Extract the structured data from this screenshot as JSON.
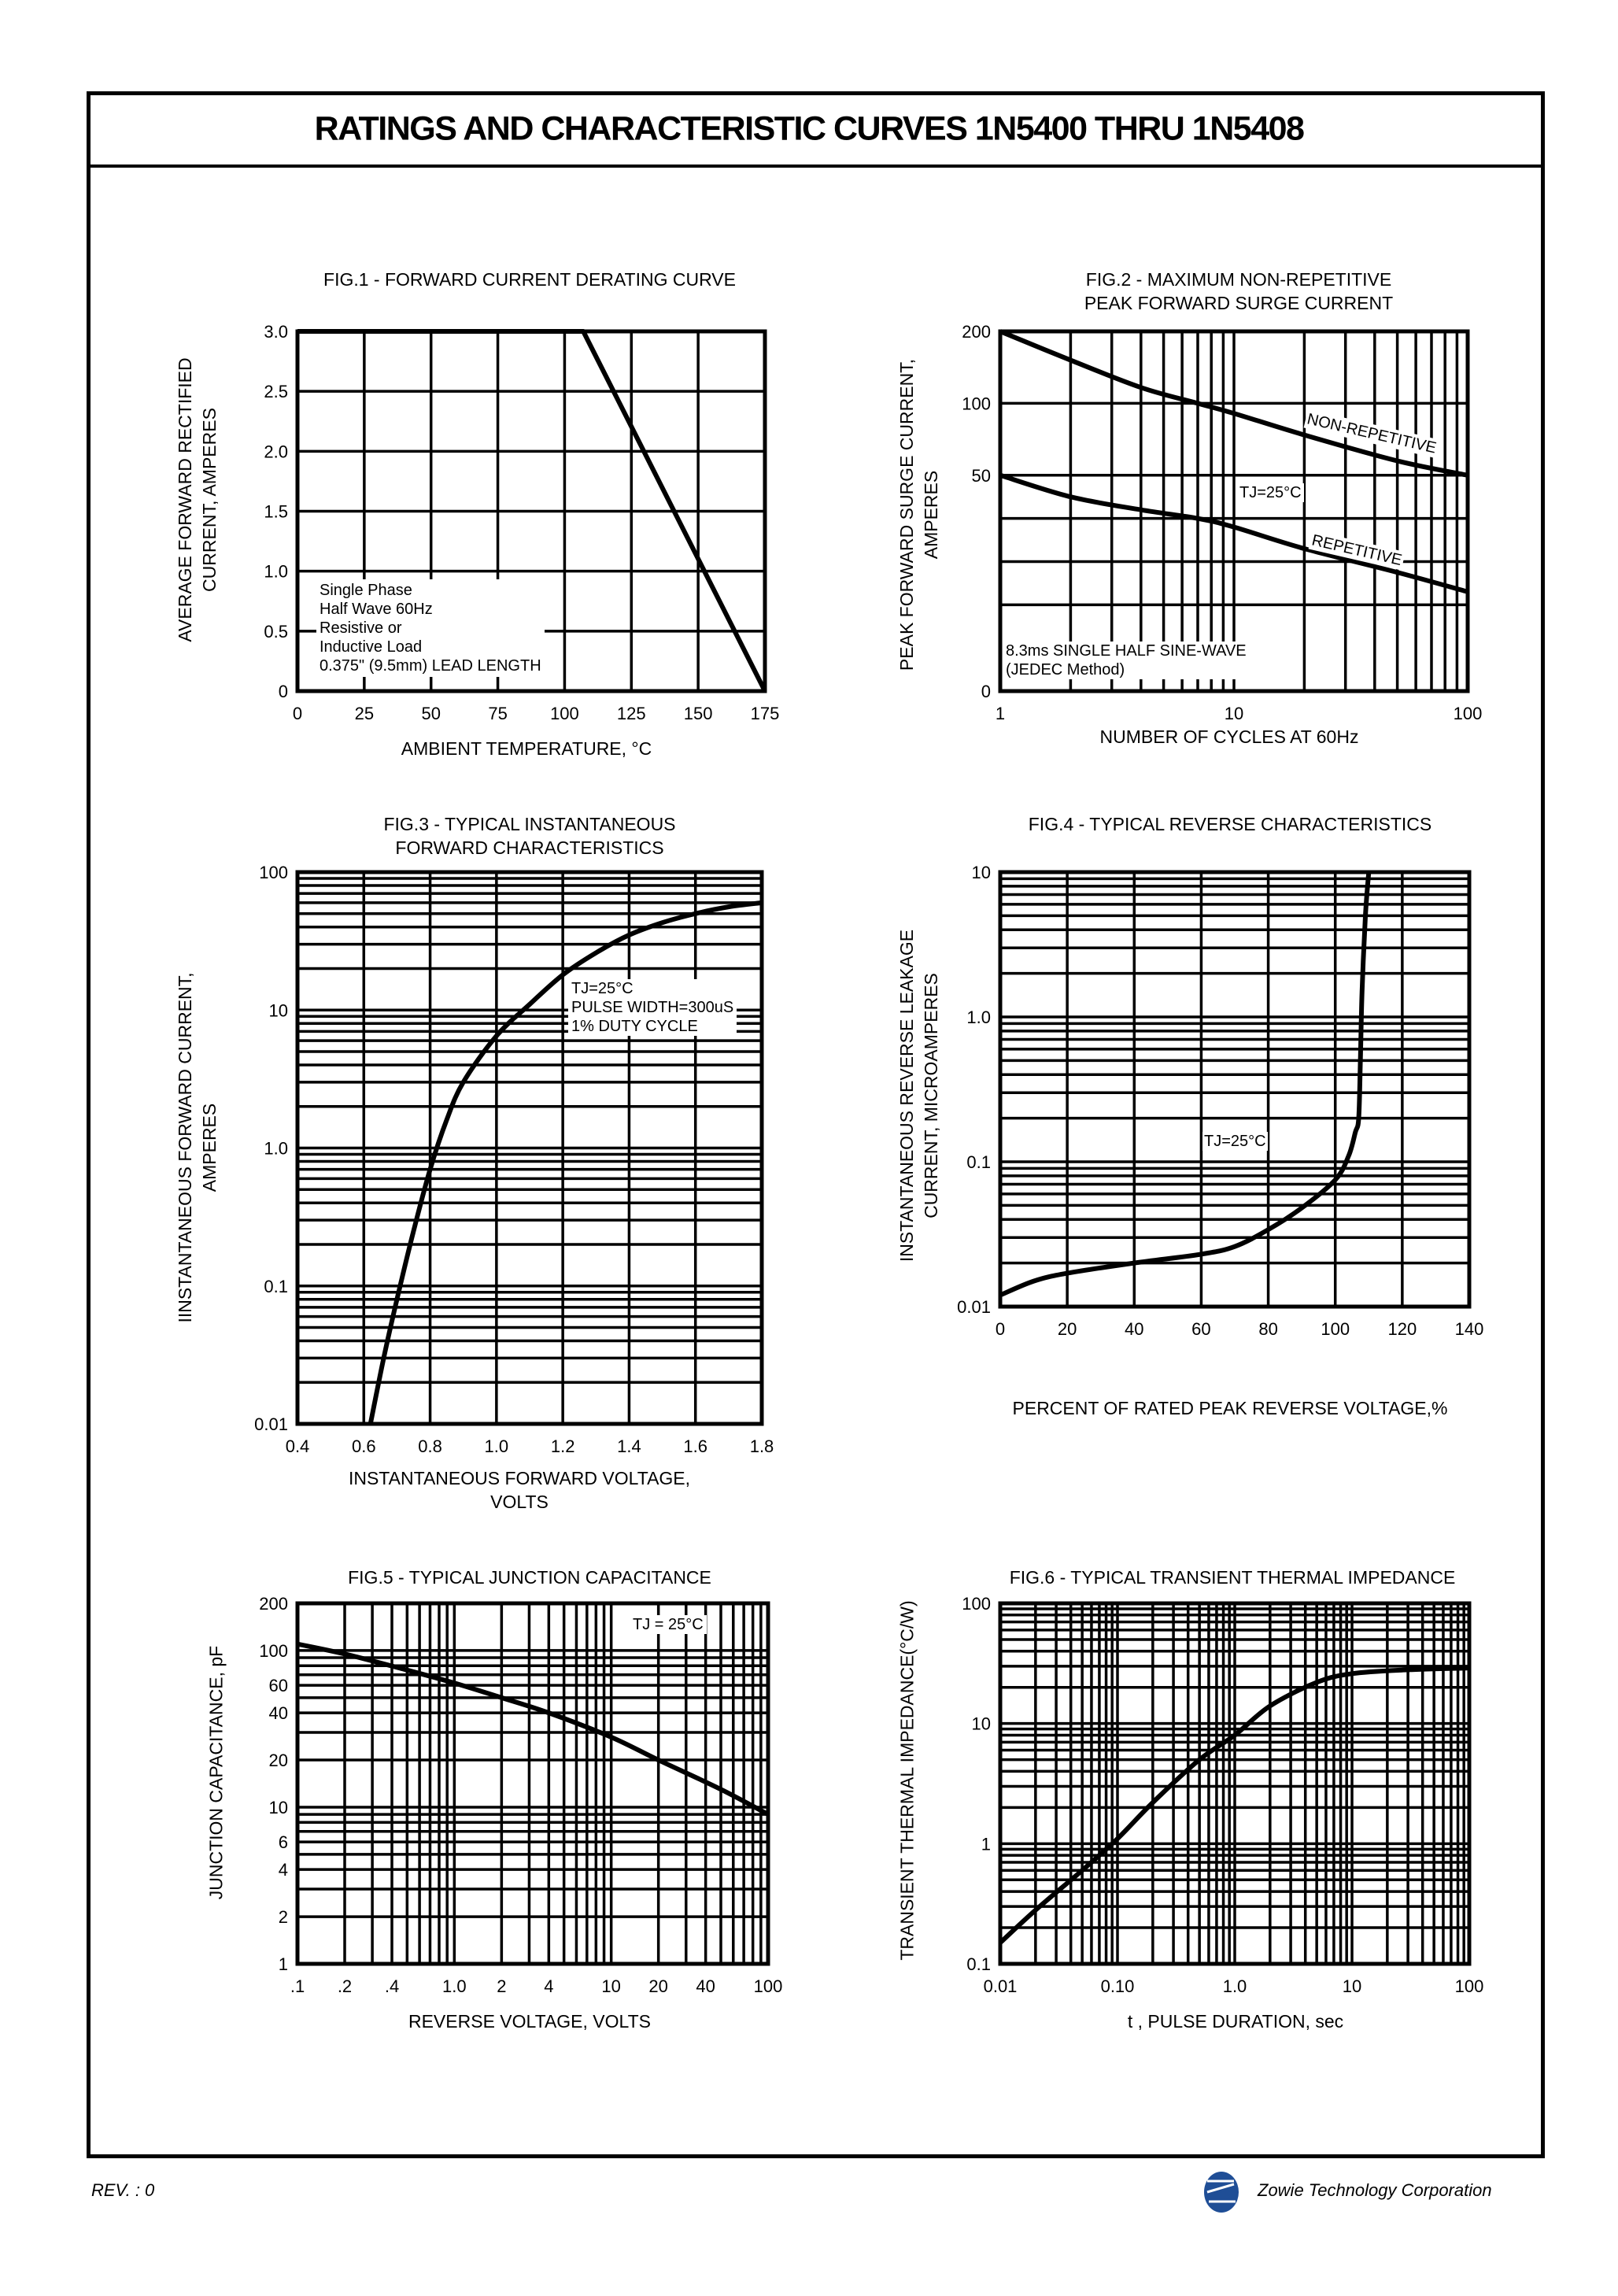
{
  "header": {
    "title": "RATINGS AND CHARACTERISTIC CURVES 1N5400 THRU 1N5408"
  },
  "footer": {
    "revision": "REV. : 0",
    "company": "Zowie Technology Corporation",
    "logo_color": "#1f4e96"
  },
  "chart_data": [
    {
      "type": "line",
      "title": [
        "FIG.1 - FORWARD CURRENT DERATING CURVE"
      ],
      "xlabel": [
        "AMBIENT TEMPERATURE, °C"
      ],
      "ylabel": [
        "AVERAGE FORWARD RECTIFIED",
        "CURRENT, AMPERES"
      ],
      "xscale": "linear",
      "yscale": "linear",
      "xlim": [
        0,
        175
      ],
      "ylim": [
        0,
        3.0
      ],
      "grid": true,
      "x_ticks": [
        "0",
        "25",
        "50",
        "75",
        "100",
        "125",
        "150",
        "175"
      ],
      "y_ticks": [
        "0",
        "0.5",
        "1.0",
        "1.5",
        "2.0",
        "2.5",
        "3.0"
      ],
      "series": [
        {
          "name": "derating",
          "x": [
            0,
            107,
            175
          ],
          "y": [
            3.0,
            3.0,
            0
          ]
        }
      ],
      "annotations": [
        "Single Phase",
        "Half Wave 60Hz",
        "Resistive or",
        "Inductive Load",
        "0.375\" (9.5mm) LEAD LENGTH"
      ]
    },
    {
      "type": "line",
      "title": [
        "FIG.2 - MAXIMUM NON-REPETITIVE",
        "PEAK FORWARD SURGE CURRENT"
      ],
      "xlabel": [
        "NUMBER OF CYCLES AT 60Hz"
      ],
      "ylabel": [
        "PEAK FORWARD SURGE CURRENT,",
        "AMPERES"
      ],
      "xscale": "log",
      "yscale": "custom",
      "xlim": [
        1,
        100
      ],
      "ylim": [
        0,
        200
      ],
      "grid": true,
      "x_ticks": [
        "1",
        "10",
        "100"
      ],
      "y_ticks": [
        "0",
        "50",
        "100",
        "200"
      ],
      "series": [
        {
          "name": "NON-REPETITIVE",
          "x": [
            1,
            2,
            4,
            7,
            10,
            20,
            50,
            100
          ],
          "y": [
            200,
            160,
            122,
            100,
            93,
            78,
            60,
            50
          ]
        },
        {
          "name": "REPETITIVE",
          "x": [
            1,
            2,
            4,
            7,
            10,
            20,
            50,
            100
          ],
          "y": [
            50,
            45,
            42,
            40,
            38,
            33,
            27.5,
            23
          ]
        }
      ],
      "annotations": [
        "TJ=25°C",
        "8.3ms SINGLE HALF SINE-WAVE",
        "(JEDEC Method)"
      ]
    },
    {
      "type": "line",
      "title": [
        "FIG.3 - TYPICAL INSTANTANEOUS",
        "FORWARD CHARACTERISTICS"
      ],
      "xlabel": [
        "INSTANTANEOUS FORWARD VOLTAGE,",
        "VOLTS"
      ],
      "ylabel": [
        "IINSTANTANEOUS FORWARD CURRENT,",
        "AMPERES"
      ],
      "xscale": "linear",
      "yscale": "log",
      "xlim": [
        0.4,
        1.8
      ],
      "ylim": [
        0.01,
        100
      ],
      "grid": true,
      "x_ticks": [
        "0.4",
        "0.6",
        "0.8",
        "1.0",
        "1.2",
        "1.4",
        "1.6",
        "1.8"
      ],
      "y_ticks": [
        "0.01",
        "0.1",
        "1.0",
        "10",
        "100"
      ],
      "series": [
        {
          "name": "forward",
          "x": [
            0.62,
            0.66,
            0.7,
            0.75,
            0.8,
            0.85,
            0.9,
            1.0,
            1.1,
            1.2,
            1.3,
            1.4,
            1.5,
            1.6,
            1.7,
            1.8
          ],
          "y": [
            0.01,
            0.03,
            0.08,
            0.25,
            0.7,
            1.6,
            3.0,
            6.5,
            11,
            18,
            26,
            35,
            43,
            50,
            56,
            60
          ]
        }
      ],
      "annotations": [
        "TJ=25°C",
        "PULSE WIDTH=300uS",
        "1% DUTY CYCLE"
      ]
    },
    {
      "type": "line",
      "title": [
        "FIG.4 - TYPICAL REVERSE CHARACTERISTICS"
      ],
      "xlabel": [
        "PERCENT OF RATED PEAK REVERSE VOLTAGE,%"
      ],
      "ylabel": [
        "INSTANTANEOUS REVERSE LEAKAGE",
        "CURRENT, MICROAMPERES"
      ],
      "xscale": "linear",
      "yscale": "log",
      "xlim": [
        0,
        140
      ],
      "ylim": [
        0.01,
        10
      ],
      "grid": true,
      "x_ticks": [
        "0",
        "20",
        "40",
        "60",
        "80",
        "100",
        "120",
        "140"
      ],
      "y_ticks": [
        "0.01",
        "0.1",
        "1.0",
        "10"
      ],
      "series": [
        {
          "name": "reverse",
          "x": [
            0,
            10,
            20,
            40,
            60,
            70,
            80,
            90,
            100,
            104,
            106,
            107,
            107.5,
            108,
            109,
            110
          ],
          "y": [
            0.012,
            0.015,
            0.017,
            0.02,
            0.023,
            0.026,
            0.034,
            0.048,
            0.075,
            0.11,
            0.16,
            0.2,
            0.5,
            1.5,
            5,
            10
          ]
        }
      ],
      "annotations": [
        "TJ=25°C"
      ]
    },
    {
      "type": "line",
      "title": [
        "FIG.5 - TYPICAL JUNCTION CAPACITANCE"
      ],
      "xlabel": [
        "REVERSE VOLTAGE, VOLTS"
      ],
      "ylabel": [
        "JUNCTION CAPACITANCE, pF"
      ],
      "xscale": "log",
      "yscale": "log",
      "xlim": [
        0.1,
        100
      ],
      "ylim": [
        1,
        200
      ],
      "grid": true,
      "x_ticks": [
        ".1",
        ".2",
        ".4",
        "1.0",
        "2",
        "4",
        "10",
        "20",
        "40",
        "100"
      ],
      "y_ticks": [
        "1",
        "2",
        "4",
        "6",
        "10",
        "20",
        "40",
        "60",
        "100",
        "200"
      ],
      "series": [
        {
          "name": "capacitance",
          "x": [
            0.1,
            0.2,
            0.5,
            1,
            2,
            4,
            10,
            20,
            50,
            100
          ],
          "y": [
            110,
            95,
            75,
            62,
            50,
            40,
            28,
            20,
            13,
            9
          ]
        }
      ],
      "annotations": [
        "TJ = 25°C"
      ]
    },
    {
      "type": "line",
      "title": [
        "FIG.6 - TYPICAL TRANSIENT THERMAL IMPEDANCE"
      ],
      "xlabel": [
        "t , PULSE DURATION, sec"
      ],
      "ylabel": [
        "TRANSIENT THERMAL IMPEDANCE(°C/W)"
      ],
      "xscale": "log",
      "yscale": "log",
      "xlim": [
        0.01,
        100
      ],
      "ylim": [
        0.1,
        100
      ],
      "grid": true,
      "x_ticks": [
        "0.01",
        "0.10",
        "1.0",
        "10",
        "100"
      ],
      "y_ticks": [
        "0.1",
        "1",
        "10",
        "100"
      ],
      "series": [
        {
          "name": "impedance",
          "x": [
            0.01,
            0.02,
            0.05,
            0.1,
            0.2,
            0.5,
            1,
            2,
            5,
            10,
            30,
            100
          ],
          "y": [
            0.15,
            0.28,
            0.6,
            1.1,
            2.2,
            5,
            8,
            14,
            22,
            26,
            28,
            29
          ]
        }
      ],
      "annotations": []
    }
  ]
}
